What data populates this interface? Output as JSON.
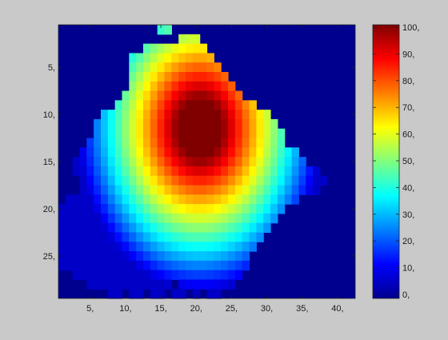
{
  "chart_data": {
    "type": "heatmap",
    "title": "",
    "xlabel": "",
    "ylabel": "",
    "grid": false,
    "rows": 29,
    "cols": 42,
    "x_ticks": [
      5,
      10,
      15,
      20,
      25,
      30,
      35,
      40
    ],
    "y_ticks": [
      5,
      10,
      15,
      20,
      25
    ],
    "x_tick_labels": [
      "5,",
      "10,",
      "15,",
      "20,",
      "25,",
      "30,",
      "35,",
      "40,"
    ],
    "y_tick_labels": [
      "5,",
      "10,",
      "15,",
      "20,",
      "25,"
    ],
    "colorbar": {
      "colormap": "jet",
      "range": [
        0,
        100
      ],
      "ticks": [
        0,
        10,
        20,
        30,
        40,
        50,
        60,
        70,
        80,
        90,
        100
      ],
      "tick_labels": [
        "0,",
        "10,",
        "20,",
        "30,",
        "40,",
        "50,",
        "60,",
        "70,",
        "80,",
        "90,",
        "100,"
      ]
    },
    "peak": {
      "value": 100,
      "x": 20,
      "y": 11,
      "x_spread": 8.5,
      "y_spread": 8.5
    },
    "background_value": 0,
    "max_value": 100,
    "region_row_extents": [
      {
        "row": 1,
        "x_from": 17,
        "x_to": 19
      },
      {
        "row": 2,
        "x_from": 12,
        "x_to": 20
      },
      {
        "row": 3,
        "x_from": 10,
        "x_to": 21
      },
      {
        "row": 4,
        "x_from": 10,
        "x_to": 22
      },
      {
        "row": 5,
        "x_from": 10,
        "x_to": 23
      },
      {
        "row": 6,
        "x_from": 10,
        "x_to": 24
      },
      {
        "row": 7,
        "x_from": 9,
        "x_to": 25
      },
      {
        "row": 8,
        "x_from": 8,
        "x_to": 27
      },
      {
        "row": 9,
        "x_from": 6,
        "x_to": 29
      },
      {
        "row": 10,
        "x_from": 5,
        "x_to": 30
      },
      {
        "row": 11,
        "x_from": 5,
        "x_to": 31
      },
      {
        "row": 12,
        "x_from": 4,
        "x_to": 31
      },
      {
        "row": 13,
        "x_from": 3,
        "x_to": 33
      },
      {
        "row": 14,
        "x_from": 2,
        "x_to": 34
      },
      {
        "row": 15,
        "x_from": 2,
        "x_to": 36
      },
      {
        "row": 16,
        "x_from": 3,
        "x_to": 37
      },
      {
        "row": 17,
        "x_from": 3,
        "x_to": 36
      },
      {
        "row": 18,
        "x_from": 1,
        "x_to": 33
      },
      {
        "row": 19,
        "x_from": 0,
        "x_to": 31
      },
      {
        "row": 20,
        "x_from": 0,
        "x_to": 30
      },
      {
        "row": 21,
        "x_from": 0,
        "x_to": 29
      },
      {
        "row": 22,
        "x_from": 0,
        "x_to": 28
      },
      {
        "row": 23,
        "x_from": 0,
        "x_to": 27
      },
      {
        "row": 24,
        "x_from": 0,
        "x_to": 26
      },
      {
        "row": 25,
        "x_from": 0,
        "x_to": 26
      },
      {
        "row": 26,
        "x_from": 2,
        "x_to": 25
      },
      {
        "row": 27,
        "x_from": 4,
        "x_to": 24
      },
      {
        "row": 28,
        "x_from": 6,
        "x_to": 22
      },
      {
        "row": 29,
        "x_from": 7,
        "x_to": 19
      }
    ],
    "top_tab": {
      "row": 0,
      "x_from": 14,
      "x_to": 15
    },
    "bottom_notches": [
      {
        "row": 28,
        "x": 6
      },
      {
        "row": 29,
        "x": 7
      },
      {
        "row": 28,
        "x": 9
      },
      {
        "row": 29,
        "x": 12
      },
      {
        "row": 28,
        "x": 12
      },
      {
        "row": 29,
        "x": 14
      },
      {
        "row": 28,
        "x": 15
      },
      {
        "row": 27,
        "x": 16
      },
      {
        "row": 29,
        "x": 16
      },
      {
        "row": 28,
        "x": 18
      },
      {
        "row": 29,
        "x": 18
      },
      {
        "row": 28,
        "x": 20
      },
      {
        "row": 29,
        "x": 21
      },
      {
        "row": 29,
        "x": 23
      },
      {
        "row": 28,
        "x": 24
      }
    ]
  }
}
